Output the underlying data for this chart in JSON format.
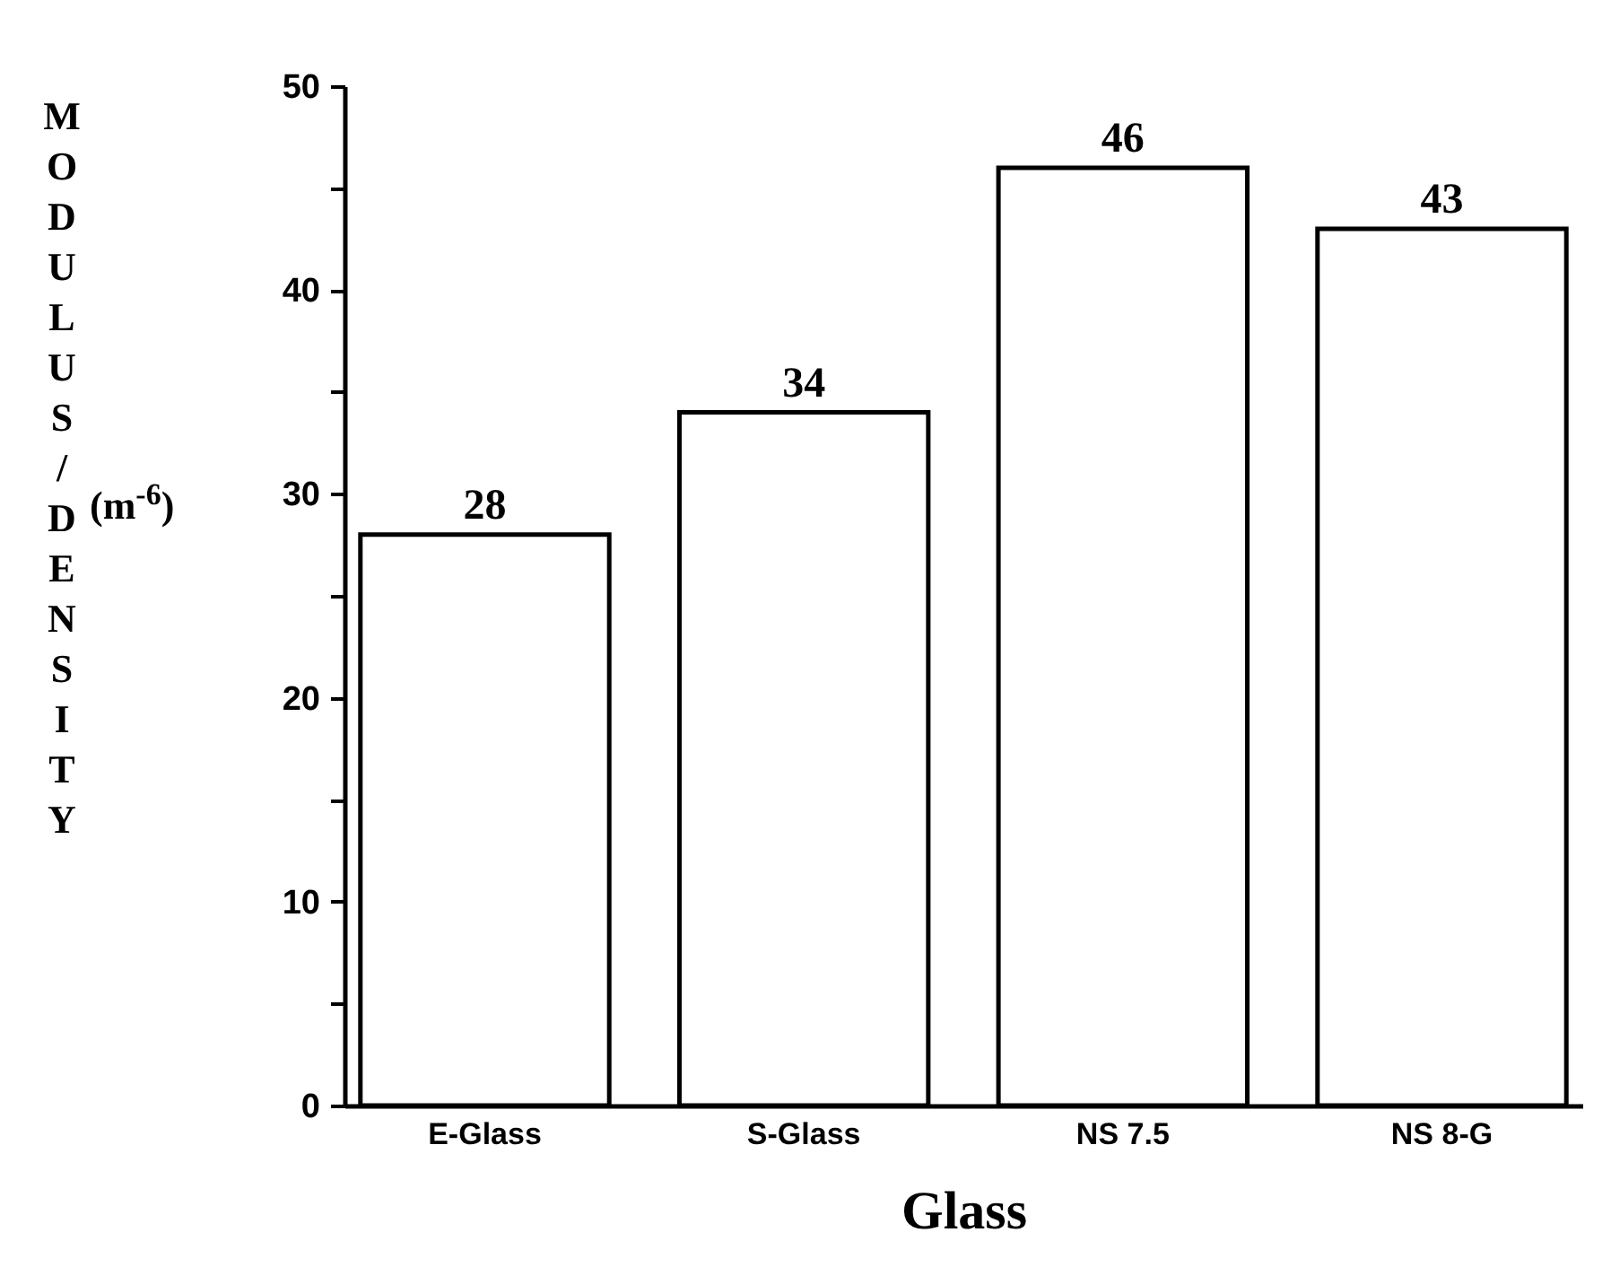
{
  "chart_data": {
    "type": "bar",
    "xlabel": "Glass",
    "ylabel": "MODULUS/DENSITY (m$^{-6}$)",
    "categories": [
      "E-Glass",
      "S-Glass",
      "NS 7.5",
      "NS 8-G"
    ],
    "values": [
      28,
      34,
      46,
      43
    ],
    "color": "#ffffff",
    "data_labels": true,
    "grid": false,
    "ylim": [
      0,
      50
    ],
    "yticks": [
      0,
      {
        "value": 5,
        "label": null
      },
      10,
      {
        "value": 15,
        "label": null
      },
      20,
      {
        "value": 25,
        "label": null
      },
      30,
      {
        "value": 35,
        "label": null
      },
      40,
      {
        "value": 45,
        "label": null
      },
      50
    ]
  }
}
